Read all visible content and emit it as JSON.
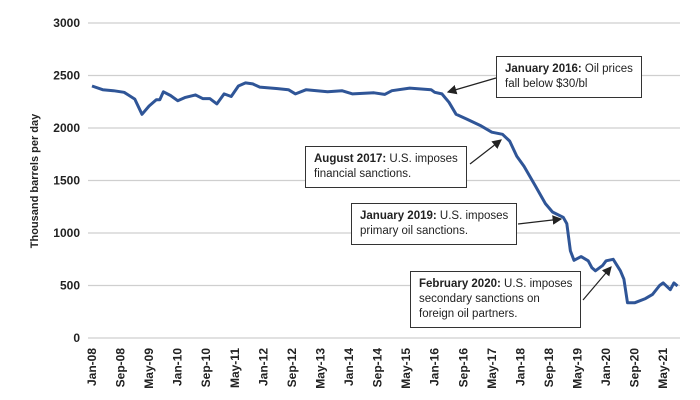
{
  "chart_data": {
    "type": "line",
    "title": "",
    "xlabel": "",
    "ylabel": "Thousand barrels per day",
    "ylim": [
      0,
      3000
    ],
    "yticks": [
      "0",
      "500",
      "1000",
      "1500",
      "2000",
      "2500",
      "3000"
    ],
    "xticks": [
      "Jan-08",
      "Sep-08",
      "May-09",
      "Jan-10",
      "Sep-10",
      "May-11",
      "Jan-12",
      "Sep-12",
      "May-13",
      "Jan-14",
      "Sep-14",
      "May-15",
      "Jan-16",
      "Sep-16",
      "May-17",
      "Jan-18",
      "Sep-18",
      "May-19",
      "Jan-20",
      "Sep-20",
      "May-21"
    ],
    "grid": "horizontal",
    "line_color": "#2f5597",
    "series": [
      {
        "points": [
          [
            "2008-01",
            2400
          ],
          [
            "2008-04",
            2365
          ],
          [
            "2008-07",
            2355
          ],
          [
            "2008-10",
            2340
          ],
          [
            "2009-01",
            2275
          ],
          [
            "2009-03",
            2130
          ],
          [
            "2009-05",
            2210
          ],
          [
            "2009-07",
            2270
          ],
          [
            "2009-08",
            2270
          ],
          [
            "2009-09",
            2345
          ],
          [
            "2009-11",
            2310
          ],
          [
            "2010-01",
            2260
          ],
          [
            "2010-03",
            2290
          ],
          [
            "2010-06",
            2315
          ],
          [
            "2010-08",
            2280
          ],
          [
            "2010-10",
            2280
          ],
          [
            "2010-12",
            2230
          ],
          [
            "2011-02",
            2325
          ],
          [
            "2011-04",
            2300
          ],
          [
            "2011-06",
            2400
          ],
          [
            "2011-08",
            2430
          ],
          [
            "2011-10",
            2420
          ],
          [
            "2011-12",
            2390
          ],
          [
            "2012-05",
            2375
          ],
          [
            "2012-08",
            2365
          ],
          [
            "2012-10",
            2325
          ],
          [
            "2013-01",
            2365
          ],
          [
            "2013-07",
            2345
          ],
          [
            "2013-11",
            2355
          ],
          [
            "2014-02",
            2325
          ],
          [
            "2014-08",
            2335
          ],
          [
            "2014-11",
            2320
          ],
          [
            "2015-01",
            2355
          ],
          [
            "2015-06",
            2380
          ],
          [
            "2015-12",
            2365
          ],
          [
            "2016-01",
            2340
          ],
          [
            "2016-03",
            2325
          ],
          [
            "2016-05",
            2245
          ],
          [
            "2016-07",
            2130
          ],
          [
            "2016-10",
            2085
          ],
          [
            "2017-02",
            2020
          ],
          [
            "2017-05",
            1960
          ],
          [
            "2017-08",
            1940
          ],
          [
            "2017-10",
            1875
          ],
          [
            "2017-12",
            1730
          ],
          [
            "2018-02",
            1635
          ],
          [
            "2018-05",
            1460
          ],
          [
            "2018-08",
            1280
          ],
          [
            "2018-10",
            1200
          ],
          [
            "2019-01",
            1150
          ],
          [
            "2019-02",
            1090
          ],
          [
            "2019-03",
            830
          ],
          [
            "2019-04",
            740
          ],
          [
            "2019-06",
            775
          ],
          [
            "2019-08",
            735
          ],
          [
            "2019-09",
            670
          ],
          [
            "2019-10",
            640
          ],
          [
            "2019-12",
            690
          ],
          [
            "2020-01",
            735
          ],
          [
            "2020-03",
            750
          ],
          [
            "2020-05",
            640
          ],
          [
            "2020-06",
            560
          ],
          [
            "2020-07",
            335
          ],
          [
            "2020-09",
            335
          ],
          [
            "2020-12",
            375
          ],
          [
            "2021-02",
            415
          ],
          [
            "2021-04",
            500
          ],
          [
            "2021-05",
            525
          ],
          [
            "2021-07",
            460
          ],
          [
            "2021-08",
            525
          ],
          [
            "2021-09",
            495
          ]
        ]
      }
    ],
    "annotations": [
      {
        "bold": "January 2016:",
        "text": " Oil prices",
        "line2": "fall below $30/bl"
      },
      {
        "bold": "August 2017:",
        "text": " U.S. imposes",
        "line2": "financial sanctions."
      },
      {
        "bold": "January 2019:",
        "text": " U.S. imposes",
        "line2": "primary oil sanctions."
      },
      {
        "bold": "February 2020:",
        "text": " U.S. imposes",
        "line2": "secondary sanctions on",
        "line3": "foreign oil partners."
      }
    ]
  }
}
